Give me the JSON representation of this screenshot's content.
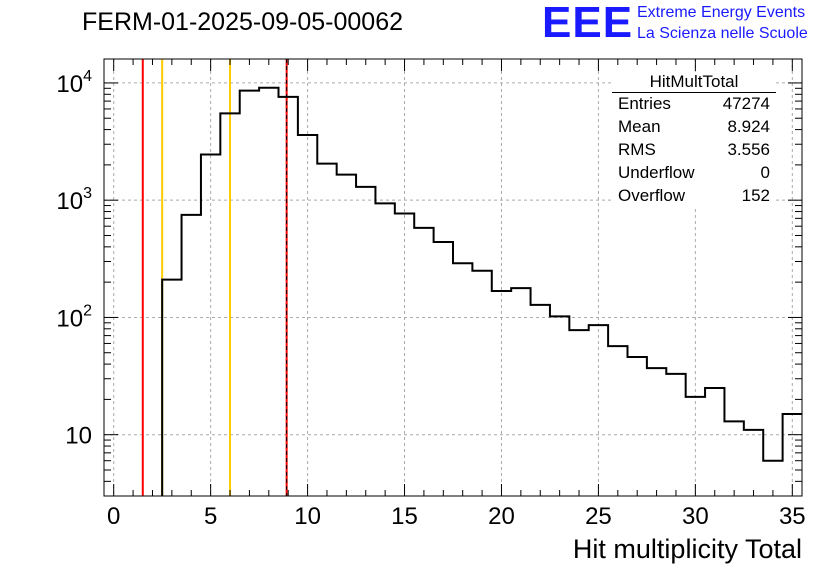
{
  "histogram": {
    "title": "FERM-01-2025-09-05-00062"
  },
  "logo": {
    "text": "EEE",
    "line1": "Extreme Energy Events",
    "line2": "La Scienza nelle Scuole"
  },
  "stats": {
    "title": "HitMultTotal",
    "rows": [
      {
        "label": "Entries",
        "value": "47274"
      },
      {
        "label": "Mean",
        "value": "8.924"
      },
      {
        "label": "RMS",
        "value": "3.556"
      },
      {
        "label": "Underflow",
        "value": "0"
      },
      {
        "label": "Overflow",
        "value": "152"
      }
    ]
  },
  "colors": {
    "histogram_line": "#000000",
    "red_line": "#ff0000",
    "yellow_line": "#ffcc00",
    "grid": "#aaaaaa"
  },
  "chart_data": {
    "type": "histogram",
    "title": "FERM-01-2025-09-05-00062",
    "xlabel": "Hit multiplicity Total",
    "ylabel": "",
    "xscale": "linear",
    "yscale": "log",
    "xlim": [
      -0.5,
      35.5
    ],
    "ylim": [
      3,
      16000
    ],
    "grid": true,
    "xticks": [
      0,
      5,
      10,
      15,
      20,
      25,
      30,
      35
    ],
    "yticks": [
      {
        "value": 10,
        "base": "10",
        "exp": ""
      },
      {
        "value": 100,
        "base": "10",
        "exp": "2"
      },
      {
        "value": 1000,
        "base": "10",
        "exp": "3"
      },
      {
        "value": 10000,
        "base": "10",
        "exp": "4"
      }
    ],
    "bin_edges_start": -0.5,
    "bin_width": 1,
    "counts": [
      0,
      0,
      0,
      210,
      750,
      2450,
      5500,
      8600,
      9100,
      7600,
      3600,
      2050,
      1650,
      1300,
      940,
      770,
      580,
      440,
      290,
      250,
      168,
      178,
      128,
      102,
      78,
      86,
      57,
      46,
      37,
      33,
      21,
      25,
      13,
      11,
      6,
      15
    ],
    "vertical_lines": [
      {
        "x": 1.5,
        "color": "red"
      },
      {
        "x": 2.5,
        "color": "yellow"
      },
      {
        "x": 6.0,
        "color": "yellow"
      },
      {
        "x": 8.92,
        "color": "red"
      }
    ],
    "mean_marker_x": 8.92
  }
}
